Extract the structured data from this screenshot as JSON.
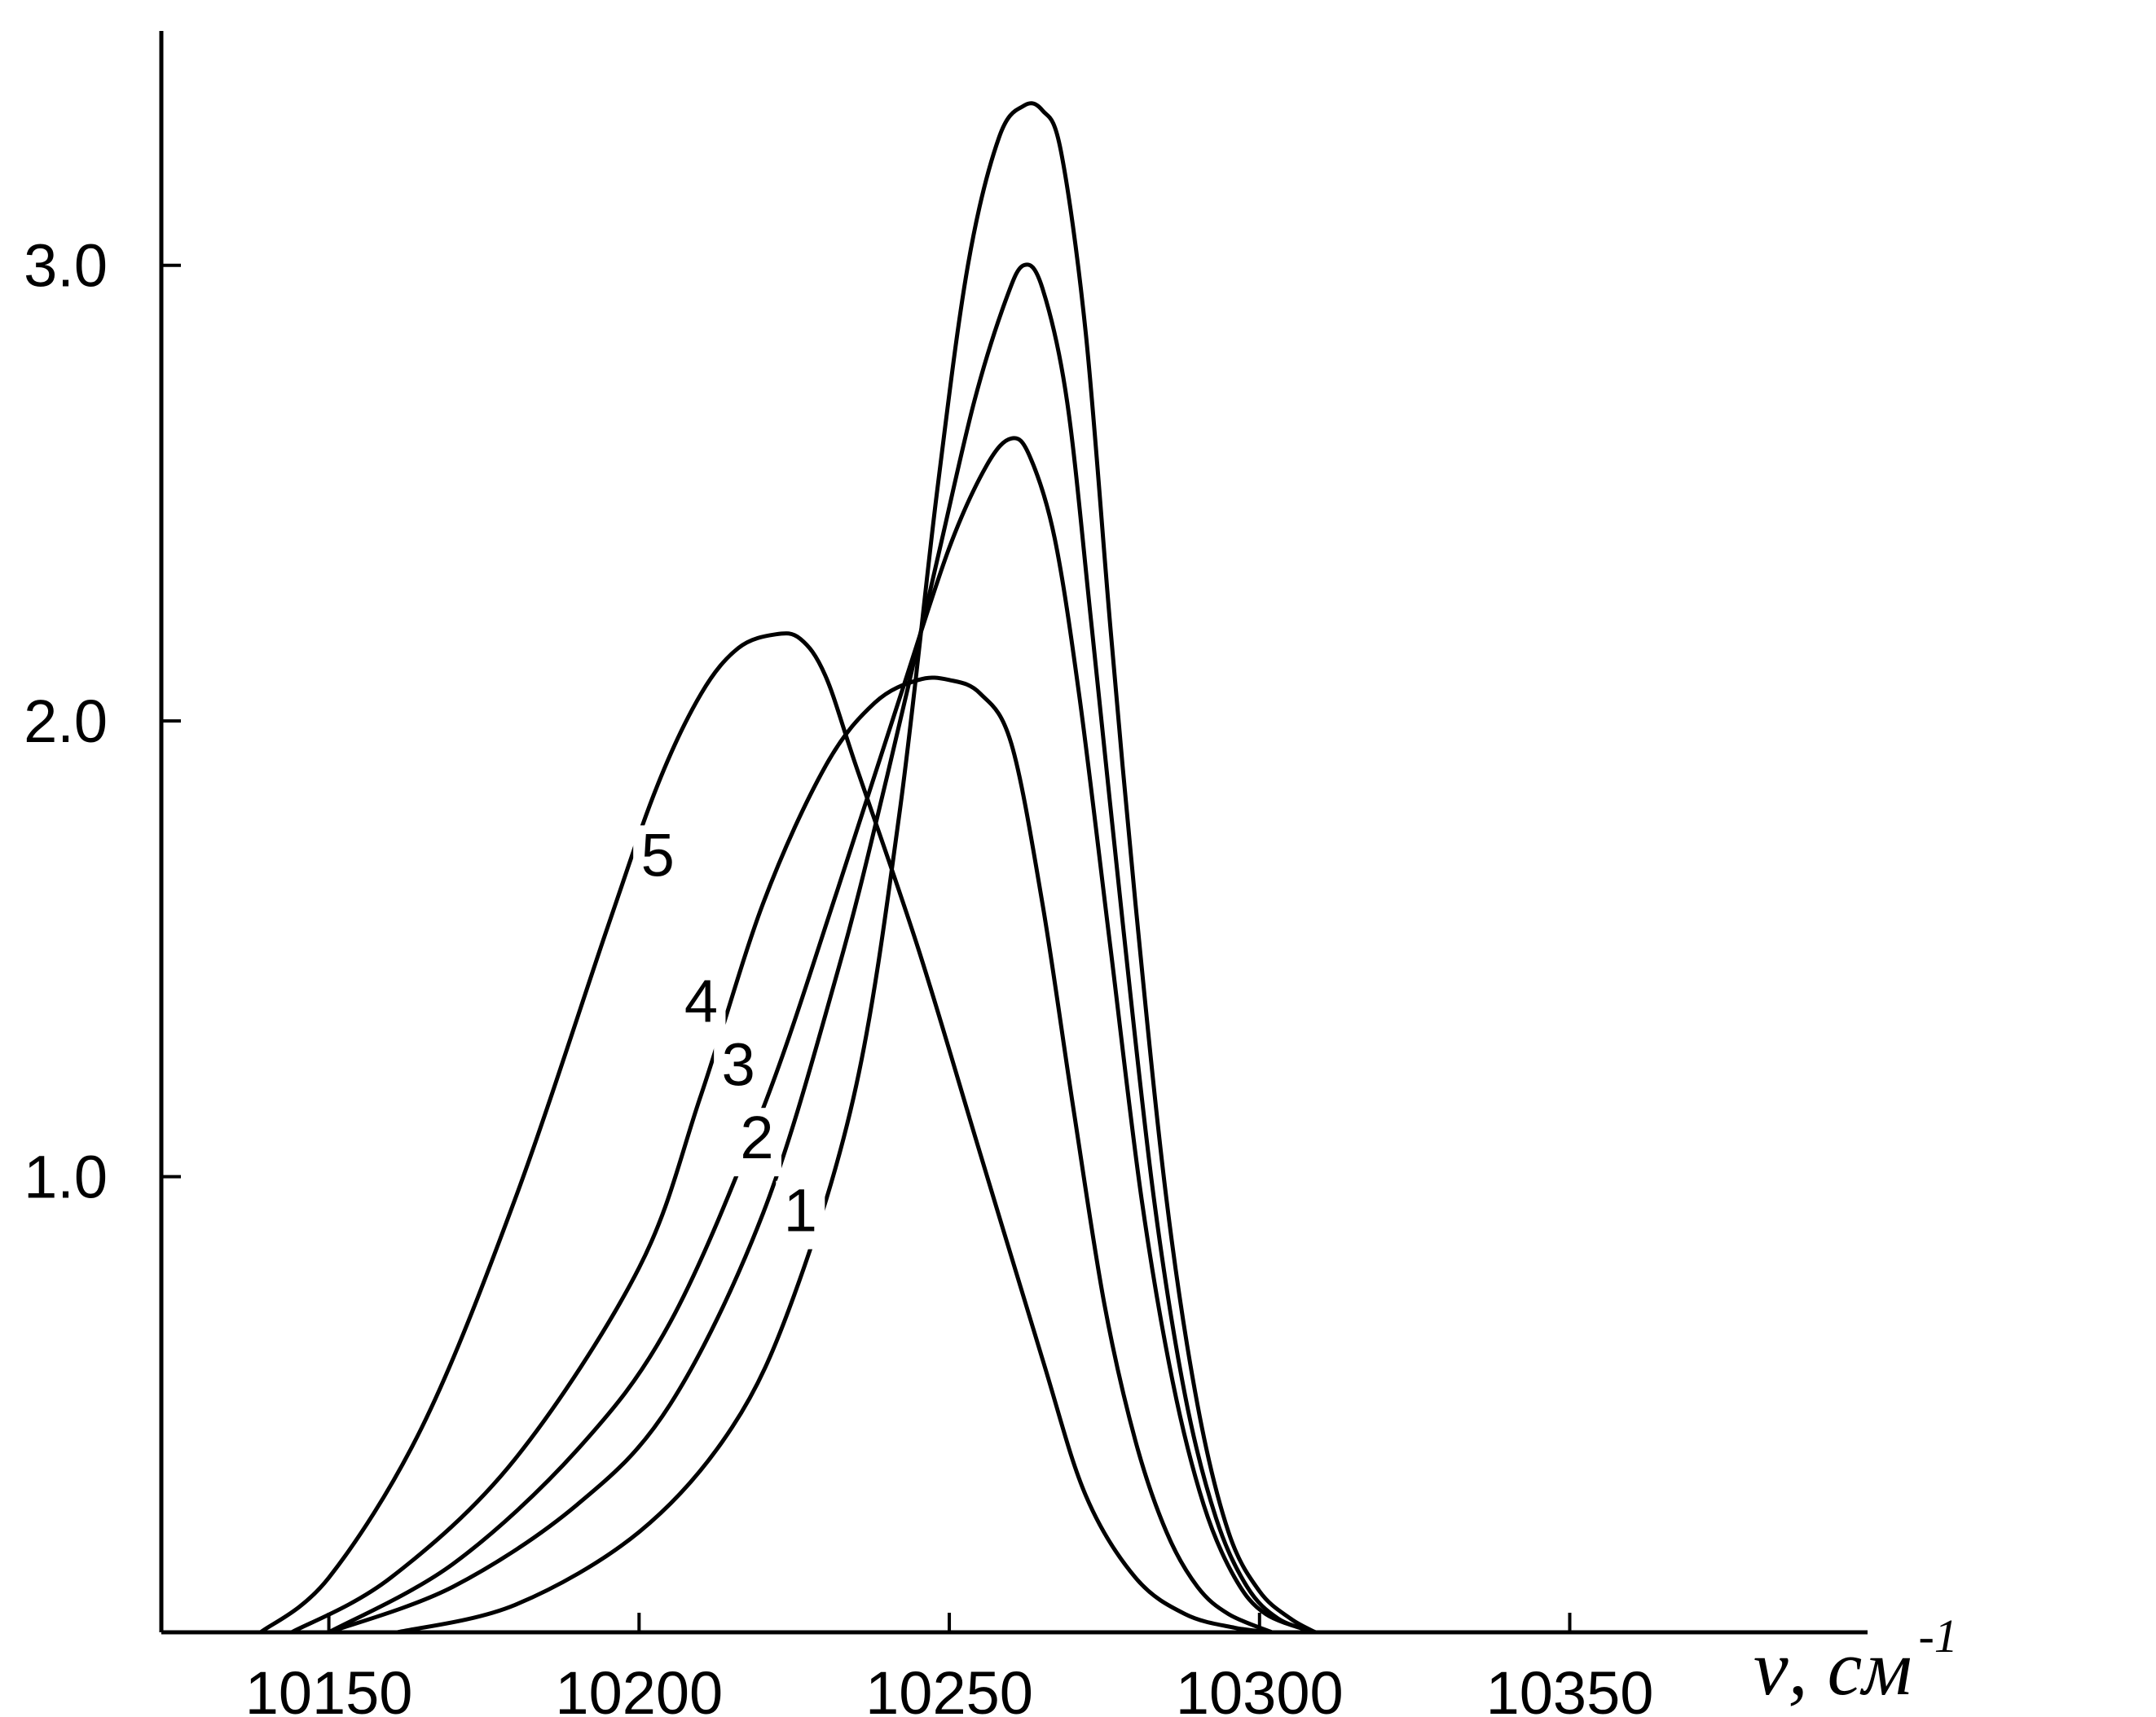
{
  "chart_data": {
    "type": "line",
    "title": "",
    "xlabel": "ν,  см",
    "xlabel_superscript": "-1",
    "ylabel": "",
    "xlim": [
      10123,
      10398
    ],
    "ylim": [
      0,
      3.55
    ],
    "x_ticks": [
      10150,
      10200,
      10250,
      10300,
      10350
    ],
    "x_tick_labels": [
      "10150",
      "10200",
      "10250",
      "10300",
      "10350"
    ],
    "y_ticks": [
      1.0,
      2.0,
      3.0
    ],
    "y_tick_labels": [
      "1.0",
      "2.0",
      "3.0"
    ],
    "grid": false,
    "legend": "none",
    "line_color": "#000000",
    "series": [
      {
        "name": "1",
        "label_position": [
          10226,
          0.88
        ],
        "x": [
          10161,
          10180,
          10200,
          10215,
          10225,
          10235,
          10242,
          10248,
          10253,
          10258,
          10262,
          10265,
          10268,
          10272,
          10276,
          10280,
          10285,
          10290,
          10295,
          10300,
          10305,
          10309
        ],
        "y": [
          0,
          0.06,
          0.22,
          0.45,
          0.74,
          1.2,
          1.8,
          2.5,
          3.0,
          3.28,
          3.35,
          3.34,
          3.25,
          2.85,
          2.2,
          1.6,
          0.95,
          0.5,
          0.22,
          0.09,
          0.03,
          0
        ]
      },
      {
        "name": "2",
        "label_position": [
          10219,
          1.04
        ],
        "x": [
          10150,
          10170,
          10190,
          10205,
          10220,
          10232,
          10240,
          10248,
          10254,
          10259,
          10262,
          10265,
          10269,
          10273,
          10278,
          10283,
          10288,
          10293,
          10298,
          10303,
          10309
        ],
        "y": [
          0,
          0.1,
          0.28,
          0.5,
          0.92,
          1.45,
          1.88,
          2.35,
          2.7,
          2.92,
          3.0,
          2.95,
          2.7,
          2.2,
          1.55,
          0.95,
          0.52,
          0.25,
          0.1,
          0.03,
          0
        ]
      },
      {
        "name": "3",
        "label_position": [
          10216,
          1.2
        ],
        "x": [
          10150,
          10170,
          10190,
          10205,
          10220,
          10232,
          10242,
          10250,
          10256,
          10260,
          10263,
          10267,
          10271,
          10276,
          10281,
          10286,
          10291,
          10296,
          10301,
          10309
        ],
        "y": [
          0,
          0.15,
          0.4,
          0.68,
          1.15,
          1.63,
          2.05,
          2.38,
          2.56,
          2.62,
          2.58,
          2.4,
          2.05,
          1.5,
          0.95,
          0.55,
          0.28,
          0.12,
          0.04,
          0
        ]
      },
      {
        "name": "4",
        "label_position": [
          10210,
          1.34
        ],
        "x": [
          10144,
          10160,
          10180,
          10200,
          10210,
          10220,
          10230,
          10238,
          10245,
          10250,
          10255,
          10260,
          10265,
          10270,
          10275,
          10280,
          10285,
          10290,
          10295,
          10302
        ],
        "y": [
          0,
          0.12,
          0.38,
          0.8,
          1.18,
          1.6,
          1.9,
          2.04,
          2.09,
          2.09,
          2.06,
          1.95,
          1.6,
          1.15,
          0.72,
          0.42,
          0.22,
          0.1,
          0.04,
          0
        ]
      },
      {
        "name": "5",
        "label_position": [
          10203,
          1.66
        ],
        "x": [
          10139,
          10150,
          10165,
          10180,
          10195,
          10203,
          10210,
          10216,
          10222,
          10226,
          10230,
          10235,
          10245,
          10255,
          10265,
          10272,
          10280,
          10288,
          10296,
          10302
        ],
        "y": [
          0,
          0.12,
          0.45,
          0.95,
          1.55,
          1.86,
          2.06,
          2.16,
          2.19,
          2.18,
          2.1,
          1.9,
          1.5,
          1.05,
          0.6,
          0.3,
          0.12,
          0.04,
          0.01,
          0
        ]
      }
    ]
  }
}
